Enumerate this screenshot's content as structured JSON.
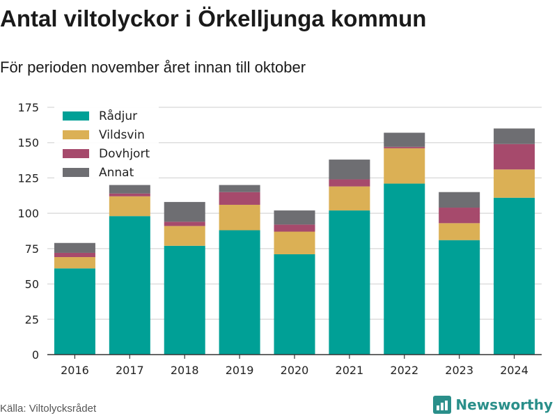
{
  "header": {
    "title": "Antal viltolyckor i Örkelljunga kommun",
    "subtitle": "För perioden november året innan till oktober"
  },
  "footer": {
    "source": "Källa: Viltolycksrådet",
    "brand": "Newsworthy",
    "brand_icon": "bar-chart-logo-icon"
  },
  "chart_data": {
    "type": "bar",
    "stacked": true,
    "categories": [
      "2016",
      "2017",
      "2018",
      "2019",
      "2020",
      "2021",
      "2022",
      "2023",
      "2024"
    ],
    "series": [
      {
        "name": "Rådjur",
        "color": "#00a096",
        "values": [
          61,
          98,
          77,
          88,
          71,
          102,
          121,
          81,
          111
        ]
      },
      {
        "name": "Vildsvin",
        "color": "#dbb055",
        "values": [
          8,
          14,
          14,
          18,
          16,
          17,
          25,
          12,
          20
        ]
      },
      {
        "name": "Dovhjort",
        "color": "#a64a6c",
        "values": [
          3,
          2,
          3,
          9,
          5,
          5,
          1,
          11,
          18
        ]
      },
      {
        "name": "Annat",
        "color": "#6e6e72",
        "values": [
          7,
          6,
          14,
          5,
          10,
          14,
          10,
          11,
          11
        ]
      }
    ],
    "ylim": [
      0,
      175
    ],
    "yticks": [
      0,
      25,
      50,
      75,
      100,
      125,
      150,
      175
    ],
    "grid": true,
    "legend": "top-left"
  }
}
